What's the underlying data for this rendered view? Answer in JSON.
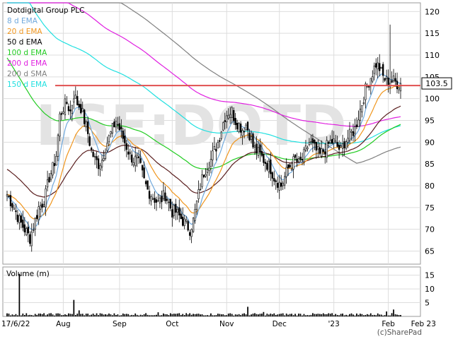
{
  "chart_data": {
    "type": "candlestick",
    "title": "Dotdigital Group PLC",
    "watermark": "LSE:DOTD",
    "copyright": "(c)SharePad",
    "legend": {
      "placement": "top-left",
      "entries": [
        {
          "label": "8 d EMA",
          "color": "#6fa8dc"
        },
        {
          "label": "20 d EMA",
          "color": "#f0961e"
        },
        {
          "label": "50 d EMA",
          "color": "#000000"
        },
        {
          "label": "100 d EMA",
          "color": "#22cc22"
        },
        {
          "label": "200 d EMA",
          "color": "#e020e0"
        },
        {
          "label": "200 d SMA",
          "color": "#808080"
        },
        {
          "label": "150 d EMA",
          "color": "#20e0e0"
        }
      ]
    },
    "price_axis": {
      "min": 62,
      "max": 122,
      "ticks": [
        65,
        70,
        75,
        80,
        85,
        90,
        95,
        100,
        105,
        110,
        115,
        120
      ]
    },
    "last_price": {
      "label": "103.5",
      "value": 103.5
    },
    "resistance_line": {
      "value": 103,
      "color": "#e05050"
    },
    "x_axis": {
      "ticks": [
        {
          "label": "17/6/22",
          "day": 0
        },
        {
          "label": "Aug",
          "day": 32
        },
        {
          "label": "Sep",
          "day": 64
        },
        {
          "label": "Oct",
          "day": 94
        },
        {
          "label": "Nov",
          "day": 125
        },
        {
          "label": "Dec",
          "day": 155
        },
        {
          "label": "'23",
          "day": 186
        },
        {
          "label": "Feb",
          "day": 217
        },
        {
          "label": "Feb 23",
          "day": 237
        }
      ],
      "last_day": 224
    },
    "volume": {
      "label": "Volume (m)",
      "axis": {
        "min": 0,
        "max": 18,
        "ticks": [
          5,
          10,
          15
        ]
      },
      "spikes": [
        {
          "day": 7,
          "value": 15.5
        },
        {
          "day": 38,
          "value": 6
        },
        {
          "day": 41,
          "value": 2.2
        },
        {
          "day": 86,
          "value": 1.5
        },
        {
          "day": 137,
          "value": 3.5
        },
        {
          "day": 146,
          "value": 1.6
        },
        {
          "day": 216,
          "value": 1.8
        },
        {
          "day": 220,
          "value": 2.5
        }
      ]
    },
    "price_anchors": [
      [
        0,
        78
      ],
      [
        4,
        75
      ],
      [
        7,
        72
      ],
      [
        10,
        70
      ],
      [
        13,
        68
      ],
      [
        16,
        72
      ],
      [
        18,
        75
      ],
      [
        20,
        76
      ],
      [
        22,
        78
      ],
      [
        24,
        82
      ],
      [
        26,
        84
      ],
      [
        28,
        87
      ],
      [
        30,
        96
      ],
      [
        32,
        98
      ],
      [
        34,
        99
      ],
      [
        36,
        97
      ],
      [
        38,
        101
      ],
      [
        40,
        99
      ],
      [
        42,
        98
      ],
      [
        44,
        95
      ],
      [
        46,
        92
      ],
      [
        48,
        88
      ],
      [
        50,
        86
      ],
      [
        52,
        85
      ],
      [
        54,
        86
      ],
      [
        56,
        89
      ],
      [
        58,
        91
      ],
      [
        60,
        93
      ],
      [
        62,
        95
      ],
      [
        64,
        93
      ],
      [
        66,
        91
      ],
      [
        68,
        89
      ],
      [
        70,
        87
      ],
      [
        72,
        86
      ],
      [
        74,
        86
      ],
      [
        76,
        84
      ],
      [
        78,
        81
      ],
      [
        80,
        79
      ],
      [
        82,
        78
      ],
      [
        84,
        77
      ],
      [
        86,
        76
      ],
      [
        88,
        77
      ],
      [
        90,
        78
      ],
      [
        92,
        76
      ],
      [
        94,
        74
      ],
      [
        96,
        74
      ],
      [
        98,
        73
      ],
      [
        100,
        72
      ],
      [
        102,
        71
      ],
      [
        104,
        70
      ],
      [
        106,
        72
      ],
      [
        108,
        76
      ],
      [
        110,
        80
      ],
      [
        112,
        83
      ],
      [
        114,
        85
      ],
      [
        116,
        86
      ],
      [
        118,
        88
      ],
      [
        120,
        90
      ],
      [
        122,
        93
      ],
      [
        124,
        96
      ],
      [
        126,
        97
      ],
      [
        128,
        97
      ],
      [
        130,
        95
      ],
      [
        132,
        94
      ],
      [
        134,
        93
      ],
      [
        136,
        94
      ],
      [
        138,
        92
      ],
      [
        140,
        89
      ],
      [
        142,
        88
      ],
      [
        144,
        87
      ],
      [
        146,
        86
      ],
      [
        148,
        85
      ],
      [
        150,
        84
      ],
      [
        152,
        82
      ],
      [
        154,
        81
      ],
      [
        156,
        80
      ],
      [
        158,
        82
      ],
      [
        160,
        84
      ],
      [
        162,
        85
      ],
      [
        164,
        86
      ],
      [
        166,
        85
      ],
      [
        168,
        86
      ],
      [
        170,
        88
      ],
      [
        172,
        90
      ],
      [
        174,
        89
      ],
      [
        176,
        88
      ],
      [
        178,
        87
      ],
      [
        180,
        88
      ],
      [
        182,
        89
      ],
      [
        184,
        90
      ],
      [
        186,
        90
      ],
      [
        188,
        89
      ],
      [
        190,
        88
      ],
      [
        192,
        90
      ],
      [
        194,
        91
      ],
      [
        196,
        92
      ],
      [
        198,
        93
      ],
      [
        200,
        96
      ],
      [
        202,
        99
      ],
      [
        204,
        102
      ],
      [
        206,
        104
      ],
      [
        208,
        106
      ],
      [
        210,
        108
      ],
      [
        212,
        107
      ],
      [
        214,
        105
      ],
      [
        216,
        104
      ],
      [
        218,
        104
      ],
      [
        220,
        104
      ],
      [
        222,
        103.5
      ],
      [
        224,
        103.5
      ]
    ]
  }
}
